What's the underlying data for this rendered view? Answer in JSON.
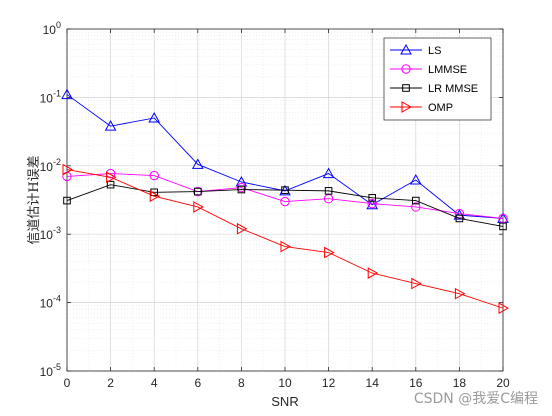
{
  "chart_data": {
    "type": "line",
    "title": "",
    "xlabel": "SNR",
    "ylabel": "信道估计H误差",
    "x": [
      0,
      2,
      4,
      6,
      8,
      10,
      12,
      14,
      16,
      18,
      20
    ],
    "xlim": [
      0,
      20
    ],
    "xticks": [
      "0",
      "2",
      "4",
      "6",
      "8",
      "10",
      "12",
      "14",
      "16",
      "18",
      "20"
    ],
    "ylim": [
      1e-05,
      1
    ],
    "yscale": "log",
    "yticks": [
      {
        "exp": "0",
        "value": 1
      },
      {
        "exp": "-1",
        "value": 0.1
      },
      {
        "exp": "-2",
        "value": 0.01
      },
      {
        "exp": "-3",
        "value": 0.001
      },
      {
        "exp": "-4",
        "value": 0.0001
      },
      {
        "exp": "-5",
        "value": 1e-05
      }
    ],
    "ytick_base": "10",
    "grid": true,
    "legend_position": "top-right",
    "series": [
      {
        "name": "LS",
        "color": "#0000ff",
        "marker": "triangle-up",
        "values": [
          0.11,
          0.038,
          0.05,
          0.0105,
          0.0058,
          0.0043,
          0.0077,
          0.0027,
          0.0062,
          0.0019,
          0.0017
        ]
      },
      {
        "name": "LMMSE",
        "color": "#ff00ff",
        "marker": "circle",
        "values": [
          0.007,
          0.0077,
          0.0072,
          0.0042,
          0.0048,
          0.003,
          0.0033,
          0.0028,
          0.0025,
          0.002,
          0.0017
        ]
      },
      {
        "name": "LR MMSE",
        "color": "#000000",
        "marker": "square",
        "values": [
          0.0031,
          0.0053,
          0.0041,
          0.0042,
          0.0045,
          0.0044,
          0.0043,
          0.0034,
          0.0031,
          0.0017,
          0.0013
        ]
      },
      {
        "name": "OMP",
        "color": "#ff0000",
        "marker": "triangle-right",
        "values": [
          0.0088,
          0.0068,
          0.0036,
          0.0025,
          0.0012,
          0.00066,
          0.00054,
          0.00027,
          0.00019,
          0.000135,
          8.3e-05
        ]
      }
    ]
  },
  "watermark": "CSDN @我爱C编程"
}
